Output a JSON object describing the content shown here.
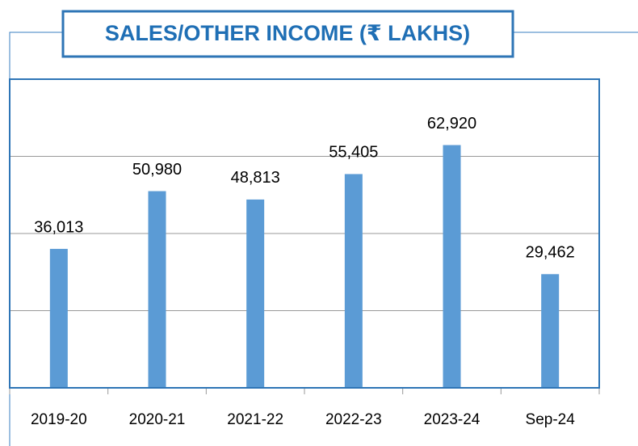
{
  "chart_data": {
    "type": "bar",
    "title": "SALES/OTHER INCOME (₹ LAKHS)",
    "categories": [
      "2019-20",
      "2020-21",
      "2021-22",
      "2022-23",
      "2023-24",
      "Sep-24"
    ],
    "values": [
      36013,
      50980,
      48813,
      55405,
      62920,
      29462
    ],
    "value_labels": [
      "36,013",
      "50,980",
      "48,813",
      "55,405",
      "62,920",
      "29,462"
    ],
    "color": "#5b9bd5",
    "ylim": [
      0,
      80000
    ],
    "yticks": [
      0,
      20000,
      40000,
      60000,
      80000
    ],
    "grid": true
  }
}
